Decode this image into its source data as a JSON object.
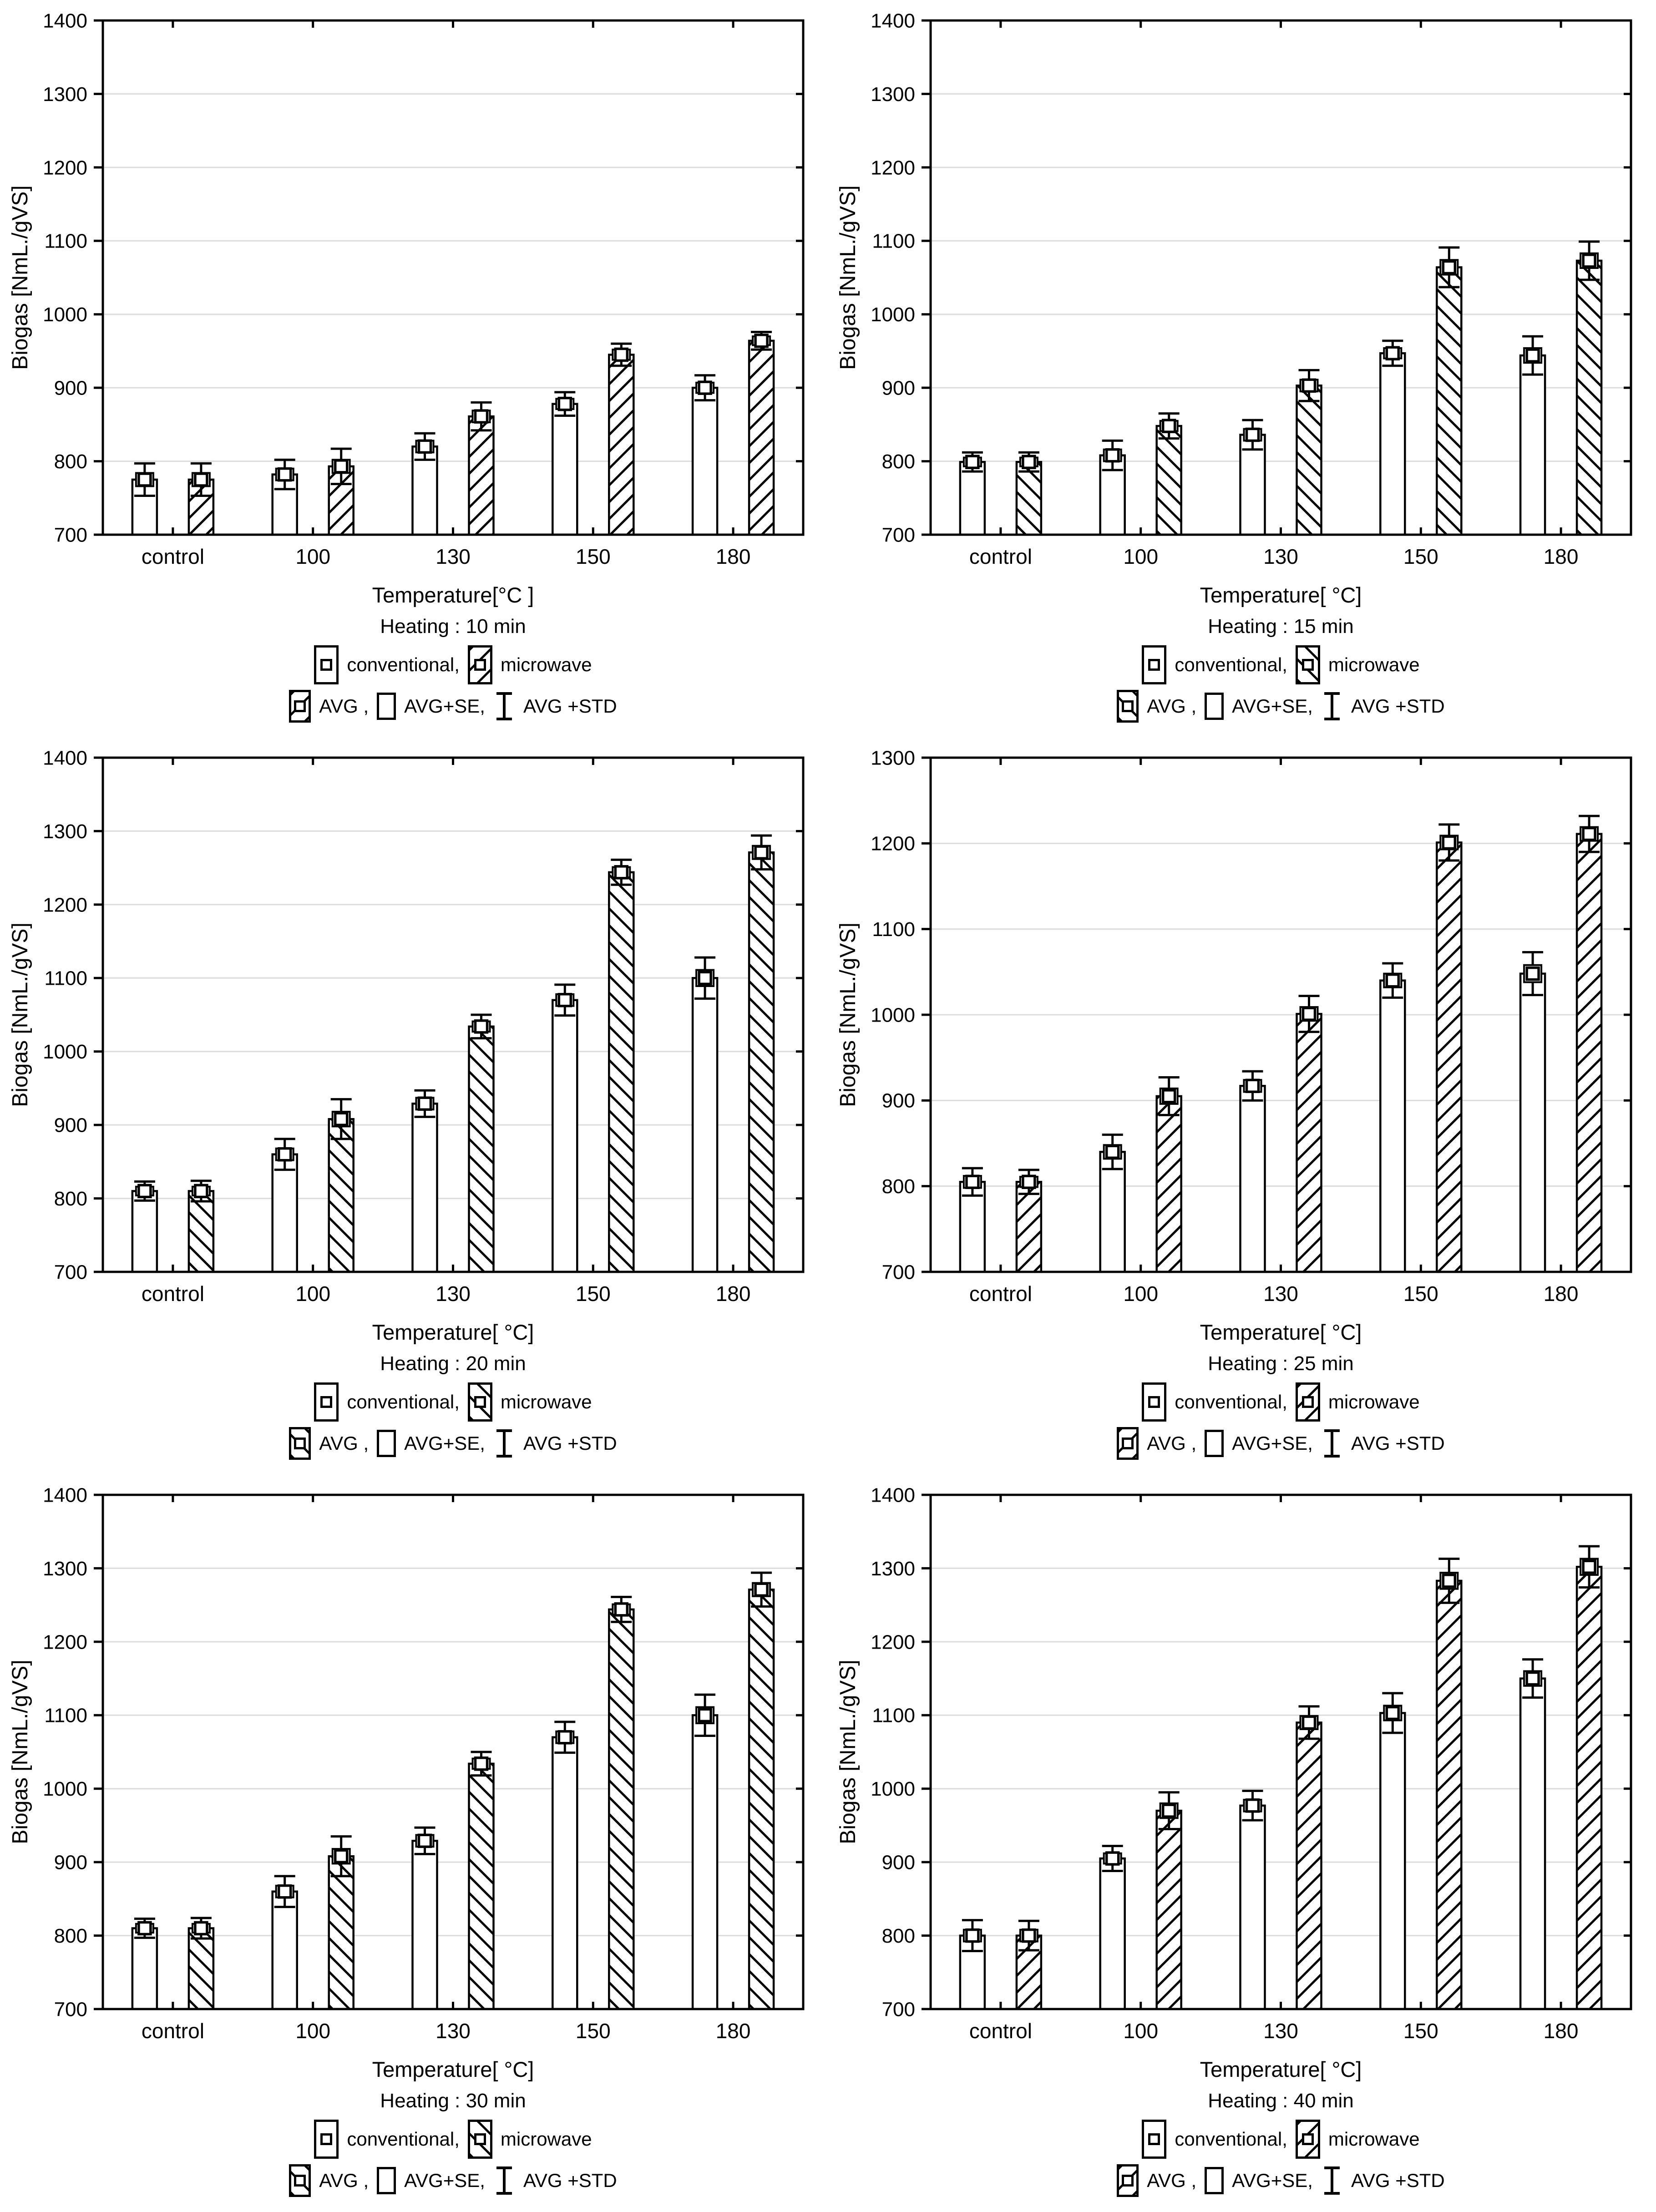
{
  "page": {
    "background": "#ffffff",
    "text_color": "#000000",
    "gridline_color": "#dcdcdc"
  },
  "chart_data": [
    {
      "type": "bar",
      "heating_label": "Heating : 10 min",
      "xlabel": "Temperature[°C ]",
      "ylabel": "Biogas [NmL./gVS]",
      "categories": [
        "control",
        "100",
        "130",
        "150",
        "180"
      ],
      "ylim": [
        700,
        1400
      ],
      "ytick_step": 100,
      "grid": true,
      "hatch_direction": "/",
      "legend": {
        "series_labels": [
          "conventional,",
          "microwave"
        ],
        "stats_labels": [
          "AVG ,",
          "AVG+SE,",
          "AVG +STD"
        ],
        "position": "bottom"
      },
      "series": [
        {
          "name": "conventional",
          "hatch": false,
          "values": [
            775,
            782,
            820,
            878,
            900
          ],
          "std": [
            22,
            20,
            18,
            16,
            17
          ],
          "se": [
            9,
            8,
            8,
            7,
            7
          ]
        },
        {
          "name": "microwave",
          "hatch": true,
          "values": [
            775,
            793,
            861,
            945,
            964
          ],
          "std": [
            22,
            24,
            19,
            15,
            12
          ],
          "se": [
            9,
            9,
            8,
            7,
            6
          ]
        }
      ]
    },
    {
      "type": "bar",
      "heating_label": "Heating : 15 min",
      "xlabel": "Temperature[ °C]",
      "ylabel": "Biogas [NmL./gVS]",
      "categories": [
        "control",
        "100",
        "130",
        "150",
        "180"
      ],
      "ylim": [
        700,
        1400
      ],
      "ytick_step": 100,
      "grid": true,
      "hatch_direction": "\\",
      "legend": {
        "series_labels": [
          "conventional,",
          "microwave"
        ],
        "stats_labels": [
          "AVG ,",
          "AVG+SE,",
          "AVG +STD"
        ],
        "position": "bottom"
      },
      "series": [
        {
          "name": "conventional",
          "hatch": false,
          "values": [
            799,
            808,
            836,
            947,
            944
          ],
          "std": [
            13,
            20,
            20,
            17,
            26
          ],
          "se": [
            6,
            8,
            8,
            7,
            10
          ]
        },
        {
          "name": "microwave",
          "hatch": true,
          "values": [
            799,
            848,
            903,
            1064,
            1073
          ],
          "std": [
            13,
            17,
            21,
            27,
            26
          ],
          "se": [
            6,
            7,
            8,
            10,
            10
          ]
        }
      ]
    },
    {
      "type": "bar",
      "heating_label": "Heating : 20 min",
      "xlabel": "Temperature[ °C]",
      "ylabel": "Biogas [NmL./gVS]",
      "categories": [
        "control",
        "100",
        "130",
        "150",
        "180"
      ],
      "ylim": [
        700,
        1400
      ],
      "ytick_step": 100,
      "grid": true,
      "hatch_direction": "\\",
      "legend": {
        "series_labels": [
          "conventional,",
          "microwave"
        ],
        "stats_labels": [
          "AVG ,",
          "AVG+SE,",
          "AVG +STD"
        ],
        "position": "bottom"
      },
      "series": [
        {
          "name": "conventional",
          "hatch": false,
          "values": [
            810,
            860,
            929,
            1070,
            1100
          ],
          "std": [
            13,
            21,
            18,
            21,
            28
          ],
          "se": [
            6,
            8,
            8,
            8,
            11
          ]
        },
        {
          "name": "microwave",
          "hatch": true,
          "values": [
            810,
            908,
            1034,
            1244,
            1271
          ],
          "std": [
            14,
            27,
            16,
            17,
            23
          ],
          "se": [
            6,
            10,
            7,
            7,
            9
          ]
        }
      ]
    },
    {
      "type": "bar",
      "heating_label": "Heating : 25 min",
      "xlabel": "Temperature[ °C]",
      "ylabel": "Biogas [NmL./gVS]",
      "categories": [
        "control",
        "100",
        "130",
        "150",
        "180"
      ],
      "ylim": [
        700,
        1300
      ],
      "ytick_step": 100,
      "grid": true,
      "hatch_direction": "/",
      "legend": {
        "series_labels": [
          "conventional,",
          "microwave"
        ],
        "stats_labels": [
          "AVG ,",
          "AVG+SE,",
          "AVG +STD"
        ],
        "position": "bottom"
      },
      "series": [
        {
          "name": "conventional",
          "hatch": false,
          "values": [
            805,
            840,
            917,
            1040,
            1048
          ],
          "std": [
            16,
            20,
            17,
            20,
            25
          ],
          "se": [
            7,
            8,
            7,
            8,
            10
          ]
        },
        {
          "name": "microwave",
          "hatch": true,
          "values": [
            805,
            905,
            1001,
            1201,
            1211
          ],
          "std": [
            14,
            22,
            21,
            21,
            21
          ],
          "se": [
            6,
            9,
            8,
            8,
            8
          ]
        }
      ]
    },
    {
      "type": "bar",
      "heating_label": "Heating : 30 min",
      "xlabel": "Temperature[ °C]",
      "ylabel": "Biogas [NmL./gVS]",
      "categories": [
        "control",
        "100",
        "130",
        "150",
        "180"
      ],
      "ylim": [
        700,
        1400
      ],
      "ytick_step": 100,
      "grid": true,
      "hatch_direction": "\\",
      "legend": {
        "series_labels": [
          "conventional,",
          "microwave"
        ],
        "stats_labels": [
          "AVG ,",
          "AVG+SE,",
          "AVG +STD"
        ],
        "position": "bottom"
      },
      "series": [
        {
          "name": "conventional",
          "hatch": false,
          "values": [
            810,
            860,
            929,
            1070,
            1100
          ],
          "std": [
            13,
            21,
            18,
            21,
            28
          ],
          "se": [
            6,
            8,
            8,
            8,
            11
          ]
        },
        {
          "name": "microwave",
          "hatch": true,
          "values": [
            810,
            908,
            1034,
            1244,
            1271
          ],
          "std": [
            14,
            27,
            16,
            17,
            23
          ],
          "se": [
            6,
            10,
            7,
            7,
            9
          ]
        }
      ]
    },
    {
      "type": "bar",
      "heating_label": "Heating : 40 min",
      "xlabel": "Temperature[ °C]",
      "ylabel": "Biogas [NmL./gVS]",
      "categories": [
        "control",
        "100",
        "130",
        "150",
        "180"
      ],
      "ylim": [
        700,
        1400
      ],
      "ytick_step": 100,
      "grid": true,
      "hatch_direction": "/",
      "legend": {
        "series_labels": [
          "conventional,",
          "microwave"
        ],
        "stats_labels": [
          "AVG ,",
          "AVG+SE,",
          "AVG +STD"
        ],
        "position": "bottom"
      },
      "series": [
        {
          "name": "conventional",
          "hatch": false,
          "values": [
            800,
            905,
            977,
            1103,
            1150
          ],
          "std": [
            21,
            17,
            20,
            27,
            26
          ],
          "se": [
            8,
            7,
            8,
            10,
            10
          ]
        },
        {
          "name": "microwave",
          "hatch": true,
          "values": [
            800,
            970,
            1090,
            1283,
            1302
          ],
          "std": [
            20,
            25,
            22,
            30,
            28
          ],
          "se": [
            8,
            10,
            9,
            11,
            11
          ]
        }
      ]
    }
  ]
}
